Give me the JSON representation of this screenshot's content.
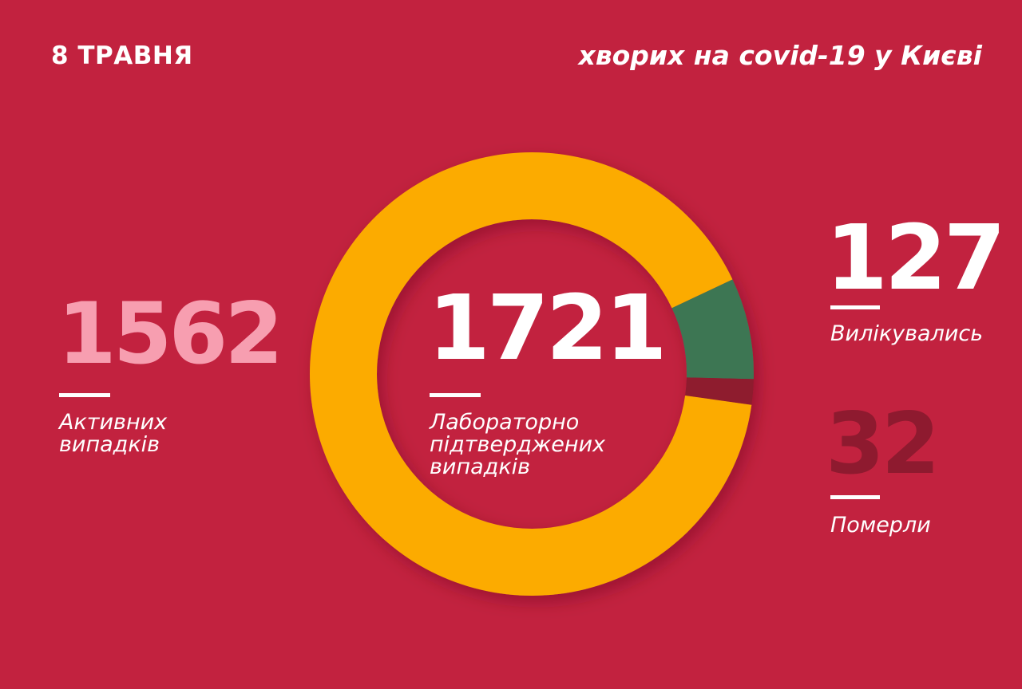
{
  "header": {
    "date": "8 ТРАВНЯ",
    "headline": "хворих на covid-19 у Києві"
  },
  "colors": {
    "background": "#c2223f",
    "active": "#fcab00",
    "recovered": "#3e7653",
    "deaths": "#8e1a2f",
    "active_number": "#f79eb0"
  },
  "stats": {
    "active": {
      "value": "1562",
      "label_lines": [
        "Активних",
        "випадків"
      ]
    },
    "total": {
      "value": "1721",
      "label_lines": [
        "Лабораторно",
        "підтверджених",
        "випадків"
      ]
    },
    "recovered": {
      "value": "127",
      "label": "Вилікувались"
    },
    "deaths": {
      "value": "32",
      "label": "Померли"
    }
  },
  "chart_data": {
    "type": "pie",
    "categories": [
      "Активних випадків",
      "Вилікувались",
      "Померли"
    ],
    "values": [
      1562,
      127,
      32
    ],
    "total": 1721
  }
}
